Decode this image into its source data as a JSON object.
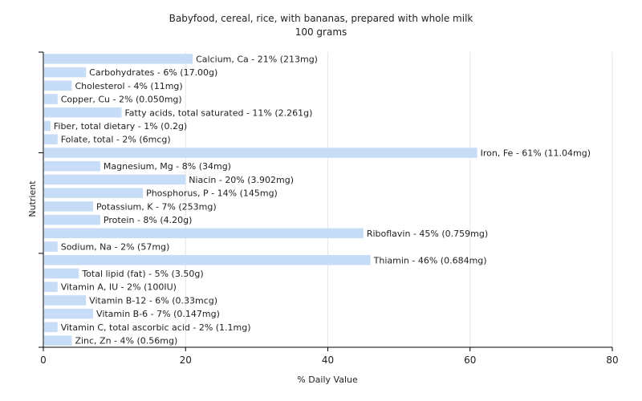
{
  "chart_data": {
    "type": "bar",
    "orientation": "horizontal",
    "title": "Babyfood, cereal, rice, with bananas, prepared with whole milk",
    "subtitle": "100 grams",
    "xlabel": "% Daily Value",
    "ylabel": "Nutrient",
    "xlim": [
      0,
      80
    ],
    "xticks": [
      0,
      20,
      40,
      60,
      80
    ],
    "grid": true,
    "bar_color": "#c6dcf7",
    "categories": [
      "Calcium, Ca",
      "Carbohydrates",
      "Cholesterol",
      "Copper, Cu",
      "Fatty acids, total saturated",
      "Fiber, total dietary",
      "Folate, total",
      "Iron, Fe",
      "Magnesium, Mg",
      "Niacin",
      "Phosphorus, P",
      "Potassium, K",
      "Protein",
      "Riboflavin",
      "Sodium, Na",
      "Thiamin",
      "Total lipid (fat)",
      "Vitamin A, IU",
      "Vitamin B-12",
      "Vitamin B-6",
      "Vitamin C, total ascorbic acid",
      "Zinc, Zn"
    ],
    "values": [
      21,
      6,
      4,
      2,
      11,
      1,
      2,
      61,
      8,
      20,
      14,
      7,
      8,
      45,
      2,
      46,
      5,
      2,
      6,
      7,
      2,
      4
    ],
    "labels": [
      "Calcium, Ca - 21% (213mg)",
      "Carbohydrates - 6% (17.00g)",
      "Cholesterol - 4% (11mg)",
      "Copper, Cu - 2% (0.050mg)",
      "Fatty acids, total saturated - 11% (2.261g)",
      "Fiber, total dietary - 1% (0.2g)",
      "Folate, total - 2% (6mcg)",
      "Iron, Fe - 61% (11.04mg)",
      "Magnesium, Mg - 8% (34mg)",
      "Niacin - 20% (3.902mg)",
      "Phosphorus, P - 14% (145mg)",
      "Potassium, K - 7% (253mg)",
      "Protein - 8% (4.20g)",
      "Riboflavin - 45% (0.759mg)",
      "Sodium, Na - 2% (57mg)",
      "Thiamin - 46% (0.684mg)",
      "Total lipid (fat) - 5% (3.50g)",
      "Vitamin A, IU - 2% (100IU)",
      "Vitamin B-12 - 6% (0.33mcg)",
      "Vitamin B-6 - 7% (0.147mg)",
      "Vitamin C, total ascorbic acid - 2% (1.1mg)",
      "Zinc, Zn - 4% (0.56mg)"
    ]
  }
}
